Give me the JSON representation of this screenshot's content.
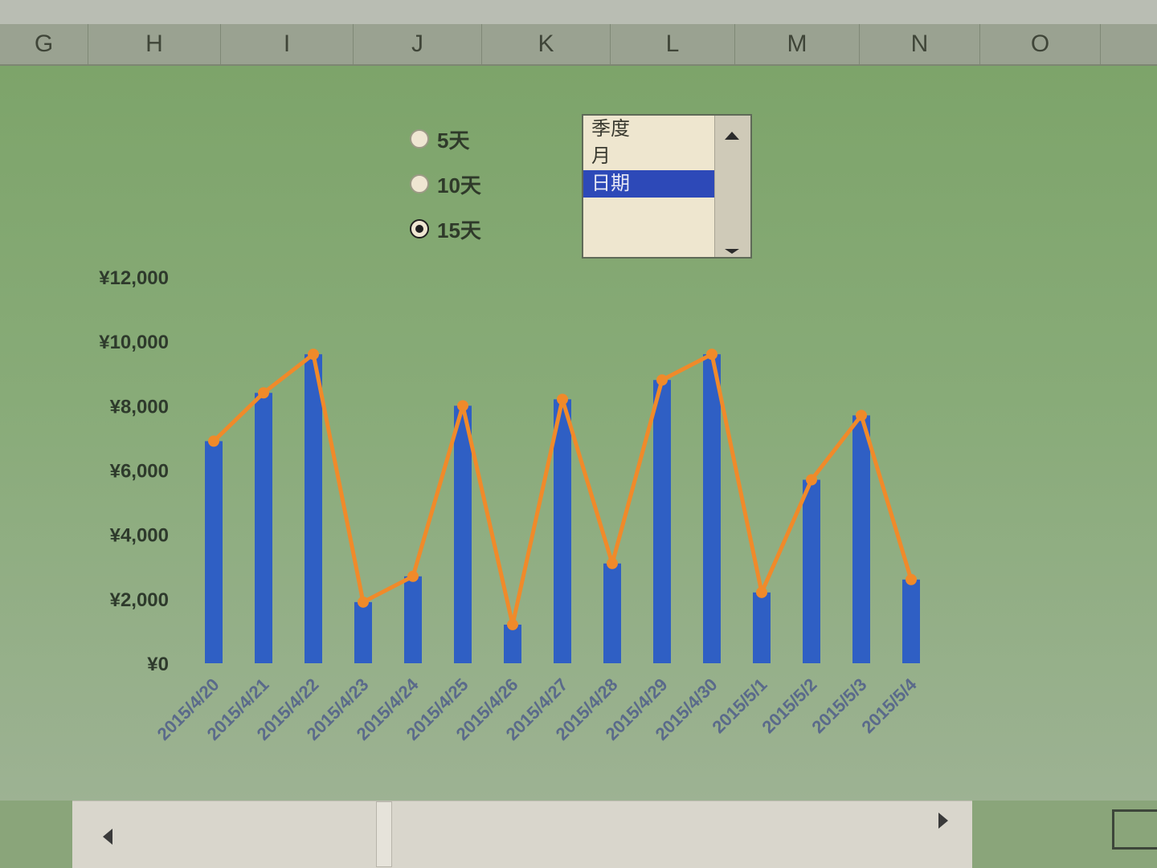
{
  "column_headers": [
    "G",
    "H",
    "I",
    "J",
    "K",
    "L",
    "M",
    "N",
    "O"
  ],
  "radio_options": [
    {
      "label": "5天",
      "checked": false
    },
    {
      "label": "10天",
      "checked": false
    },
    {
      "label": "15天",
      "checked": true
    }
  ],
  "listbox": {
    "items": [
      "季度",
      "月",
      "日期"
    ],
    "selected_index": 2
  },
  "chart_data": {
    "type": "bar",
    "categories": [
      "2015/4/20",
      "2015/4/21",
      "2015/4/22",
      "2015/4/23",
      "2015/4/24",
      "2015/4/25",
      "2015/4/26",
      "2015/4/27",
      "2015/4/28",
      "2015/4/29",
      "2015/4/30",
      "2015/5/1",
      "2015/5/2",
      "2015/5/3",
      "2015/5/4"
    ],
    "series": [
      {
        "type": "bar",
        "color": "#2f5fc4",
        "values": [
          6900,
          8400,
          9600,
          1900,
          2700,
          8000,
          1200,
          8200,
          3100,
          8800,
          9600,
          2200,
          5700,
          7700,
          2600
        ]
      },
      {
        "type": "line",
        "color": "#f08a2a",
        "values": [
          6900,
          8400,
          9600,
          1900,
          2700,
          8000,
          1200,
          8200,
          3100,
          8800,
          9600,
          2200,
          5700,
          7700,
          2600
        ]
      }
    ],
    "yticks": [
      "¥0",
      "¥2,000",
      "¥4,000",
      "¥6,000",
      "¥8,000",
      "¥10,000",
      "¥12,000"
    ],
    "ylim": [
      0,
      12000
    ],
    "title": "",
    "xlabel": "",
    "ylabel": "",
    "grid": false,
    "legend": "none"
  }
}
